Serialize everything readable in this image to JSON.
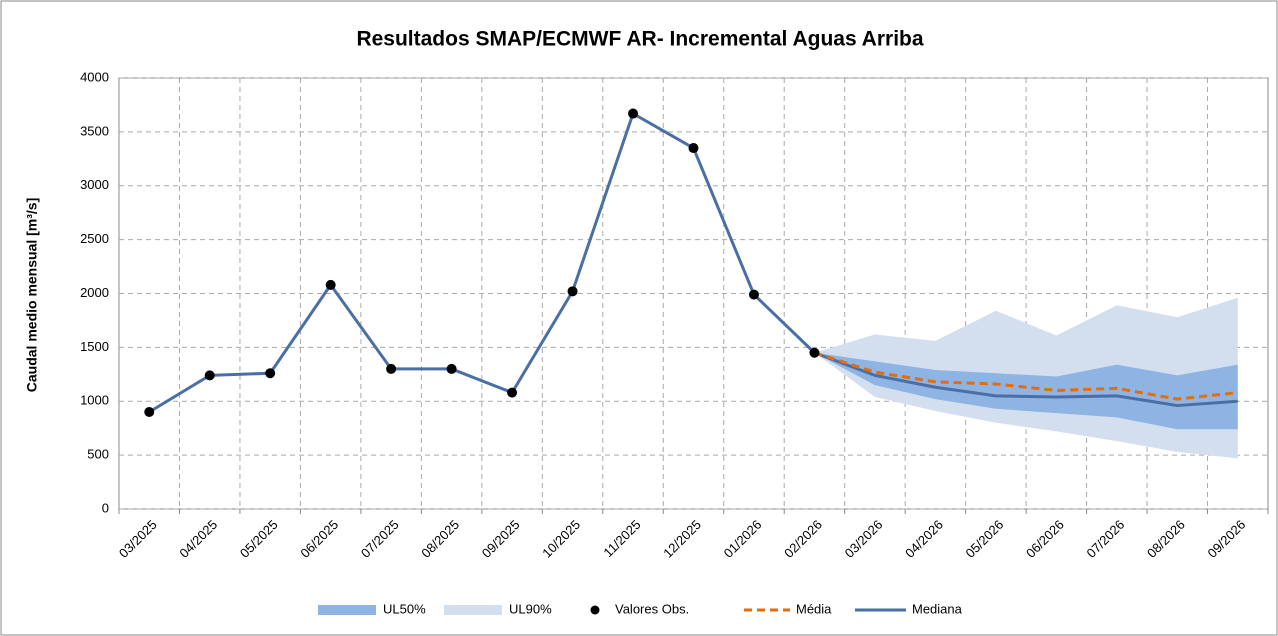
{
  "chart_data": {
    "type": "line",
    "title": "Resultados SMAP/ECMWF AR- Incremental Aguas Arriba",
    "y_label": "Caudal medio mensual [m³/s]",
    "categories": [
      "03/2025",
      "04/2025",
      "05/2025",
      "06/2025",
      "07/2025",
      "08/2025",
      "09/2025",
      "10/2025",
      "11/2025",
      "12/2025",
      "01/2026",
      "02/2026",
      "03/2026",
      "04/2026",
      "05/2026",
      "06/2026",
      "07/2026",
      "08/2026",
      "09/2026"
    ],
    "ylim": [
      0,
      4000
    ],
    "yticks": [
      0,
      500,
      1000,
      1500,
      2000,
      2500,
      3000,
      3500,
      4000
    ],
    "grid": true,
    "bands": [
      {
        "name": "UL50%",
        "color": "#8eb4e3",
        "lower": [
          null,
          null,
          null,
          null,
          null,
          null,
          null,
          null,
          null,
          null,
          null,
          1450,
          1150,
          1020,
          930,
          890,
          850,
          740,
          740
        ],
        "upper": [
          null,
          null,
          null,
          null,
          null,
          null,
          null,
          null,
          null,
          null,
          null,
          1450,
          1370,
          1290,
          1260,
          1230,
          1340,
          1240,
          1340
        ]
      },
      {
        "name": "UL90%",
        "color": "#d3dfee",
        "lower": [
          null,
          null,
          null,
          null,
          null,
          null,
          null,
          null,
          null,
          null,
          null,
          1450,
          1040,
          910,
          800,
          720,
          630,
          530,
          470
        ],
        "upper": [
          null,
          null,
          null,
          null,
          null,
          null,
          null,
          null,
          null,
          null,
          null,
          1450,
          1620,
          1560,
          1840,
          1610,
          1890,
          1780,
          1960
        ]
      }
    ],
    "series": [
      {
        "name": "Valores Obs.",
        "color": "#000000",
        "marker": "dot",
        "values": [
          900,
          1240,
          1260,
          2080,
          1300,
          1300,
          1080,
          2020,
          3670,
          3350,
          1990,
          1450,
          null,
          null,
          null,
          null,
          null,
          null,
          null
        ]
      },
      {
        "name": "Média",
        "color": "#e46c0a",
        "dashed": true,
        "values": [
          null,
          null,
          null,
          null,
          null,
          null,
          null,
          null,
          null,
          null,
          null,
          1450,
          1270,
          1180,
          1160,
          1100,
          1120,
          1020,
          1080
        ]
      },
      {
        "name": "Mediana",
        "color": "#4a6fa5",
        "values": [
          900,
          1240,
          1260,
          2080,
          1300,
          1300,
          1080,
          2020,
          3670,
          3350,
          1990,
          1450,
          1240,
          1130,
          1050,
          1040,
          1050,
          960,
          1000
        ]
      }
    ]
  }
}
